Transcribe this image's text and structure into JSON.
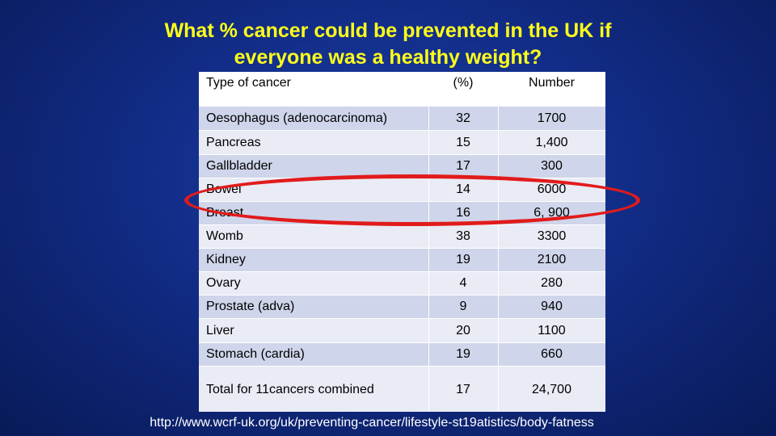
{
  "slide": {
    "title_line1": "What % cancer could be prevented in the UK if",
    "title_line2": "everyone was a healthy weight?",
    "source": "http://www.wcrf-uk.org/uk/preventing-cancer/lifestyle-st19atistics/body-fatness",
    "colors": {
      "title": "#ffff1a",
      "background": "#122c86",
      "row_dark": "#cfd5ea",
      "row_light": "#e9ebf5",
      "highlight": "#e11b1b"
    }
  },
  "table": {
    "headers": [
      "Type of cancer",
      "(%)",
      "Number"
    ],
    "rows": [
      [
        "Oesophagus (adenocarcinoma)",
        "32",
        "1700"
      ],
      [
        "Pancreas",
        "15",
        "1,400"
      ],
      [
        "Gallbladder",
        "17",
        "300"
      ],
      [
        "Bowel",
        "14",
        "6000"
      ],
      [
        "Breast",
        "16",
        "6, 900"
      ],
      [
        "Womb",
        "38",
        "3300"
      ],
      [
        "Kidney",
        "19",
        "2100"
      ],
      [
        "Ovary",
        "4",
        "280"
      ],
      [
        "Prostate (adva)",
        "9",
        "940"
      ],
      [
        "Liver",
        "20",
        "1100"
      ],
      [
        "Stomach (cardia)",
        "19",
        "660"
      ]
    ],
    "total": [
      "Total for 11cancers combined",
      "17",
      "24,700"
    ]
  }
}
